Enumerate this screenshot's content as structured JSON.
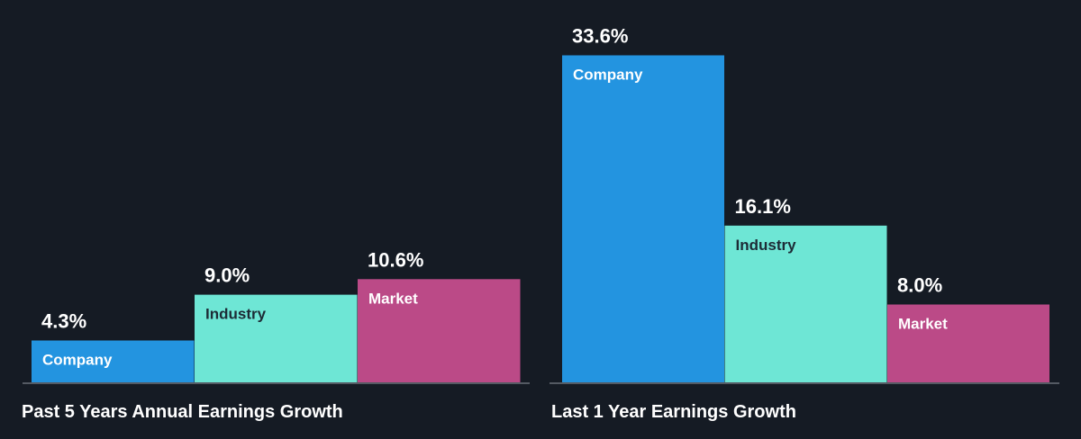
{
  "chart_data": [
    {
      "type": "bar",
      "title": "Past 5 Years Annual Earnings Growth",
      "categories": [
        "Company",
        "Industry",
        "Market"
      ],
      "values": [
        4.3,
        9.0,
        10.6
      ],
      "value_labels": [
        "4.3%",
        "9.0%",
        "10.6%"
      ],
      "colors": [
        "#2394e0",
        "#6ee6d5",
        "#bb4a87"
      ],
      "label_colors": [
        "#ffffff",
        "#1d2b36",
        "#ffffff"
      ],
      "unit": "%",
      "grid": false,
      "legend": "none"
    },
    {
      "type": "bar",
      "title": "Last 1 Year Earnings Growth",
      "categories": [
        "Company",
        "Industry",
        "Market"
      ],
      "values": [
        33.6,
        16.1,
        8.0
      ],
      "value_labels": [
        "33.6%",
        "16.1%",
        "8.0%"
      ],
      "colors": [
        "#2394e0",
        "#6ee6d5",
        "#bb4a87"
      ],
      "label_colors": [
        "#ffffff",
        "#1d2b36",
        "#ffffff"
      ],
      "unit": "%",
      "grid": false,
      "legend": "none"
    }
  ],
  "colors": {
    "background": "#151b24",
    "baseline": "#7a8089"
  }
}
